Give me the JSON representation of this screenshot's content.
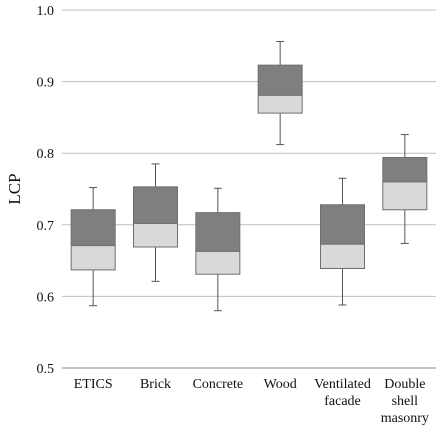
{
  "chart_data": {
    "type": "box",
    "ylabel": "LCP",
    "xlabel": "",
    "ylim": [
      0.5,
      1.0
    ],
    "yticks": [
      "0.5",
      "0.6",
      "0.7",
      "0.8",
      "0.9",
      "1.0"
    ],
    "grid": "horizontal",
    "categories": [
      [
        "ETICS"
      ],
      [
        "Brick"
      ],
      [
        "Concrete"
      ],
      [
        "Wood"
      ],
      [
        "Ventilated",
        "facade"
      ],
      [
        "Double",
        "shell",
        "masonry"
      ]
    ],
    "boxes": [
      {
        "min": 0.587,
        "q1": 0.637,
        "median": 0.671,
        "q3": 0.721,
        "max": 0.752
      },
      {
        "min": 0.621,
        "q1": 0.669,
        "median": 0.702,
        "q3": 0.753,
        "max": 0.785
      },
      {
        "min": 0.58,
        "q1": 0.631,
        "median": 0.663,
        "q3": 0.717,
        "max": 0.751
      },
      {
        "min": 0.812,
        "q1": 0.856,
        "median": 0.881,
        "q3": 0.923,
        "max": 0.956
      },
      {
        "min": 0.588,
        "q1": 0.639,
        "median": 0.673,
        "q3": 0.728,
        "max": 0.765
      },
      {
        "min": 0.674,
        "q1": 0.721,
        "median": 0.76,
        "q3": 0.794,
        "max": 0.826
      }
    ],
    "colors": {
      "upper_box": "#7f7f7f",
      "lower_box": "#d9d9d9",
      "whisker": "#555555",
      "grid": "#bfbfbf",
      "axis": "#888888"
    }
  }
}
